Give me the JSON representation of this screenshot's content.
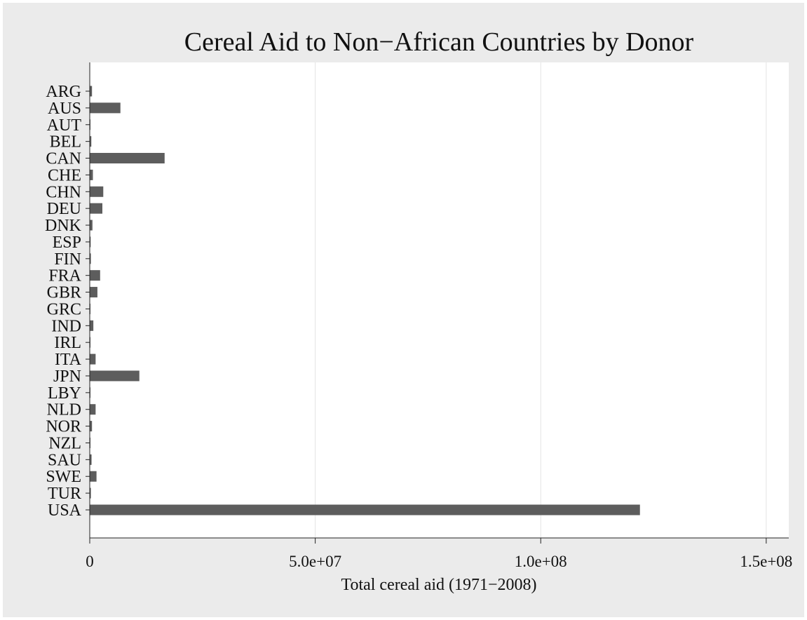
{
  "chart_data": {
    "type": "bar",
    "orientation": "horizontal",
    "title": "Cereal Aid to Non−African Countries by Donor",
    "xlabel": "Total cereal aid (1971−2008)",
    "ylabel": "",
    "xlim": [
      0,
      155000000
    ],
    "xticks": [
      {
        "value": 0,
        "label": "0"
      },
      {
        "value": 50000000,
        "label": "5.0e+07"
      },
      {
        "value": 100000000,
        "label": "1.0e+08"
      },
      {
        "value": 150000000,
        "label": "1.5e+08"
      }
    ],
    "grid": "vertical",
    "legend": "none",
    "bar_color": "#5d5d5d",
    "background_color": "#ebebeb",
    "plot_color": "#ffffff",
    "categories": [
      "ARG",
      "AUS",
      "AUT",
      "BEL",
      "CAN",
      "CHE",
      "CHN",
      "DEU",
      "DNK",
      "ESP",
      "FIN",
      "FRA",
      "GBR",
      "GRC",
      "IND",
      "IRL",
      "ITA",
      "JPN",
      "LBY",
      "NLD",
      "NOR",
      "NZL",
      "SAU",
      "SWE",
      "TUR",
      "USA"
    ],
    "values": [
      500000,
      6800000,
      100000,
      350000,
      16600000,
      700000,
      3000000,
      2800000,
      600000,
      200000,
      250000,
      2300000,
      1700000,
      100000,
      800000,
      100000,
      1300000,
      11000000,
      50000,
      1300000,
      500000,
      80000,
      400000,
      1500000,
      250000,
      122000000
    ]
  }
}
